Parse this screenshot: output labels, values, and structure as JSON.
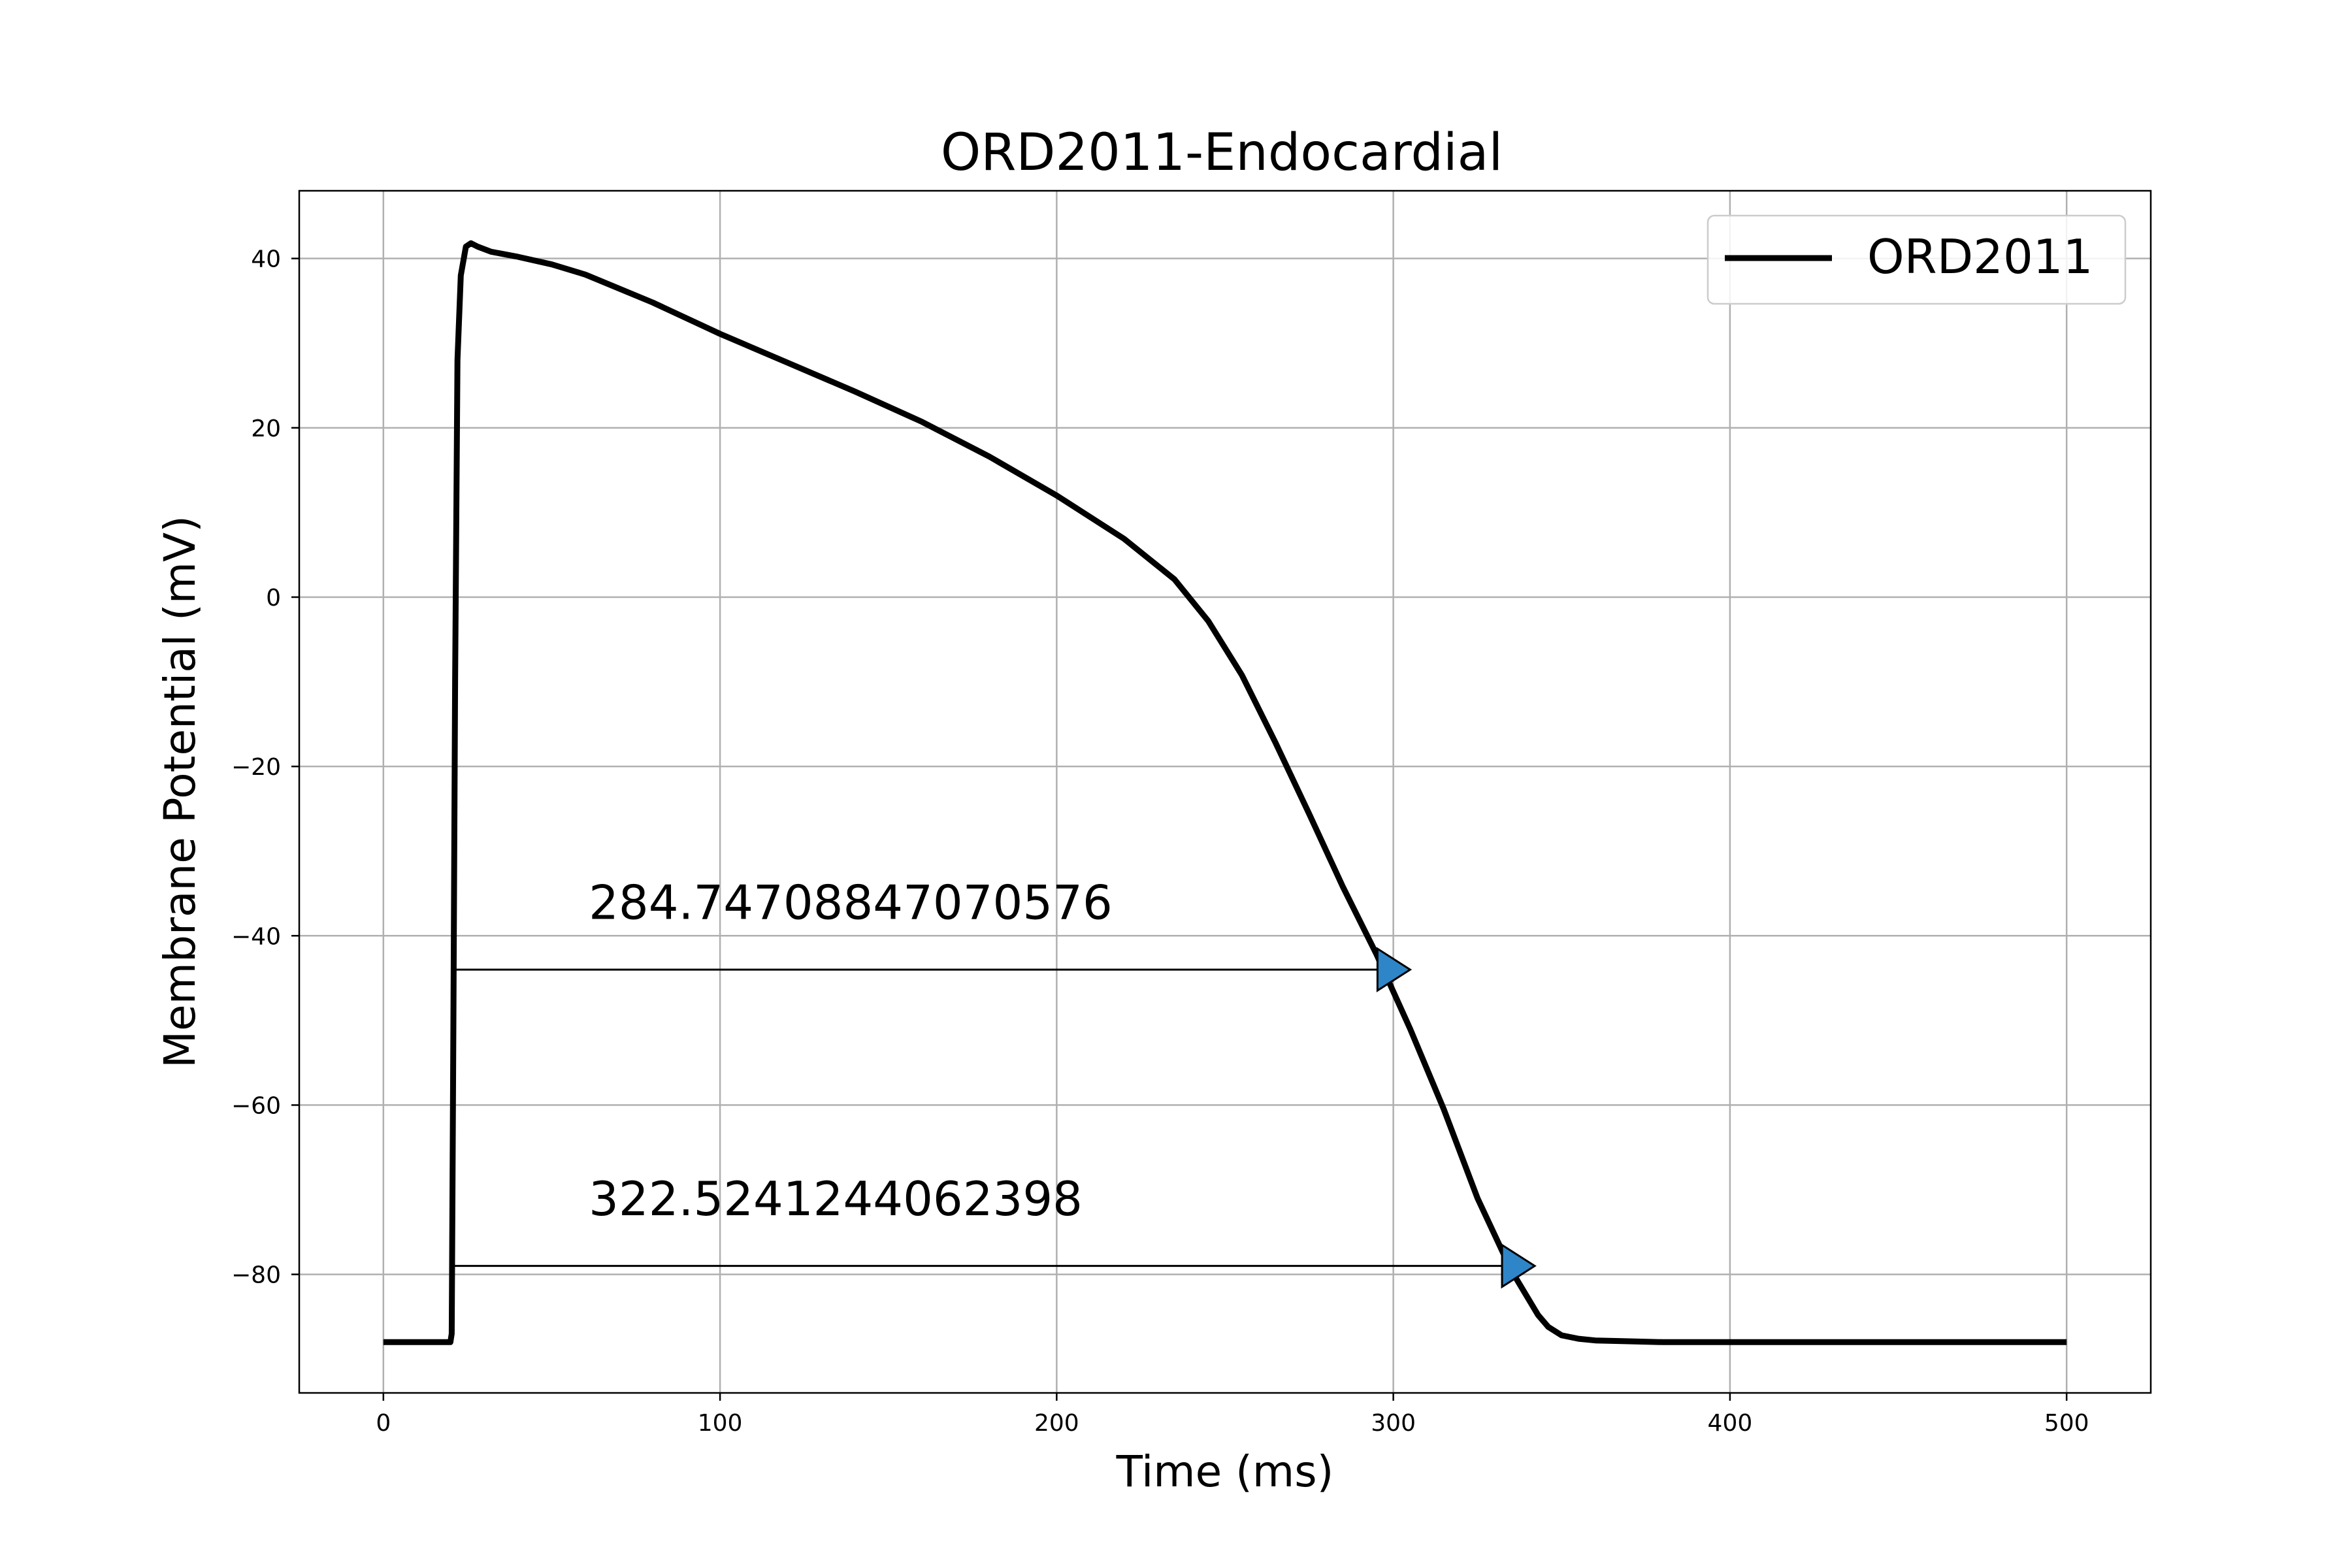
{
  "chart_data": {
    "type": "line",
    "title": "ORD2011-Endocardial",
    "xlabel": "Time (ms)",
    "ylabel": "Membrane Potential (mV)",
    "xlim": [
      -25,
      525
    ],
    "ylim": [
      -94,
      48
    ],
    "grid": true,
    "legend_position": "top-right",
    "x_ticks": [
      0,
      100,
      200,
      300,
      400,
      500
    ],
    "x_tick_labels": [
      "0",
      "100",
      "200",
      "300",
      "400",
      "500"
    ],
    "y_ticks": [
      40,
      20,
      0,
      -20,
      -40,
      -60,
      -80
    ],
    "y_tick_labels": [
      "40",
      "20",
      "0",
      "−20",
      "−40",
      "−60",
      "−80"
    ],
    "series": [
      {
        "name": "ORD2011",
        "color": "#000000",
        "x": [
          0,
          19.9,
          20.3,
          20.8,
          21.3,
          22,
          23,
          24.5,
          26,
          28,
          32,
          40,
          50,
          60,
          80,
          100,
          120,
          140,
          160,
          180,
          200,
          220,
          235,
          245,
          255,
          265,
          275,
          285,
          295,
          305,
          315,
          325,
          335,
          340,
          343,
          346,
          350,
          355,
          360,
          370,
          380,
          400,
          450,
          500
        ],
        "y": [
          -88,
          -88,
          -87,
          -50,
          -10,
          28,
          38,
          41.4,
          41.8,
          41.4,
          40.8,
          40.2,
          39.3,
          38.1,
          34.8,
          31.1,
          27.7,
          24.3,
          20.7,
          16.6,
          12,
          6.9,
          2.1,
          -2.8,
          -9.2,
          -17.2,
          -25.6,
          -34.2,
          -42.2,
          -51,
          -60.5,
          -71,
          -79.5,
          -82.8,
          -84.8,
          -86.2,
          -87.2,
          -87.6,
          -87.8,
          -87.9,
          -88,
          -88,
          -88,
          -88
        ]
      }
    ],
    "annotations": [
      {
        "text": "284.74708847070576",
        "text_x": 61,
        "text_y": -38,
        "arrow_from": [
          21,
          -44
        ],
        "arrow_to": [
          305,
          -44
        ],
        "marker_color": "#2e86c8"
      },
      {
        "text": "322.5241244062398",
        "text_x": 61,
        "text_y": -73,
        "arrow_from": [
          21,
          -79
        ],
        "arrow_to": [
          342,
          -79
        ],
        "marker_color": "#2e86c8"
      }
    ]
  }
}
